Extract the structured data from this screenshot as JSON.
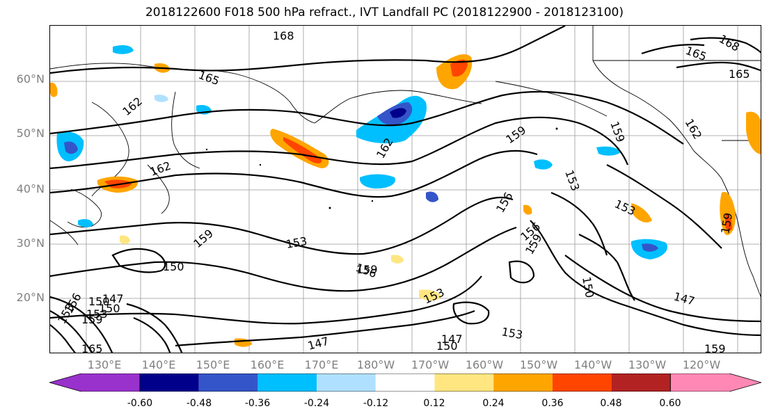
{
  "title": "2018122600 F018 500 hPa refract., IVT Landfall PC (2018122900 - 2018123100)",
  "lat_labels": [
    "60°N",
    "50°N",
    "40°N",
    "30°N",
    "20°N"
  ],
  "lon_labels": [
    "130°E",
    "140°E",
    "150°E",
    "160°E",
    "170°E",
    "180°W",
    "170°W",
    "160°W",
    "150°W",
    "140°W",
    "130°W",
    "120°W"
  ],
  "contour_labels": [
    "168",
    "165",
    "165",
    "165",
    "168",
    "162",
    "162",
    "162",
    "162",
    "159",
    "159",
    "159",
    "159",
    "159",
    "159",
    "156",
    "156",
    "156",
    "156",
    "153",
    "153",
    "153",
    "153",
    "153",
    "150",
    "150",
    "150",
    "150",
    "147",
    "147",
    "147",
    "147",
    "165",
    "153",
    "159",
    "159",
    "153",
    "150"
  ],
  "colorbar": {
    "colors": [
      "#9932cc",
      "#00008b",
      "#3455c9",
      "#00bfff",
      "#b0e0ff",
      "#ffffff",
      "#ffe680",
      "#ffa500",
      "#ff4500",
      "#b22222",
      "#ff88b4"
    ],
    "tick_labels": [
      "-0.60",
      "-0.48",
      "-0.36",
      "-0.24",
      "-0.12",
      "0.12",
      "0.24",
      "0.36",
      "0.48",
      "0.60"
    ]
  }
}
